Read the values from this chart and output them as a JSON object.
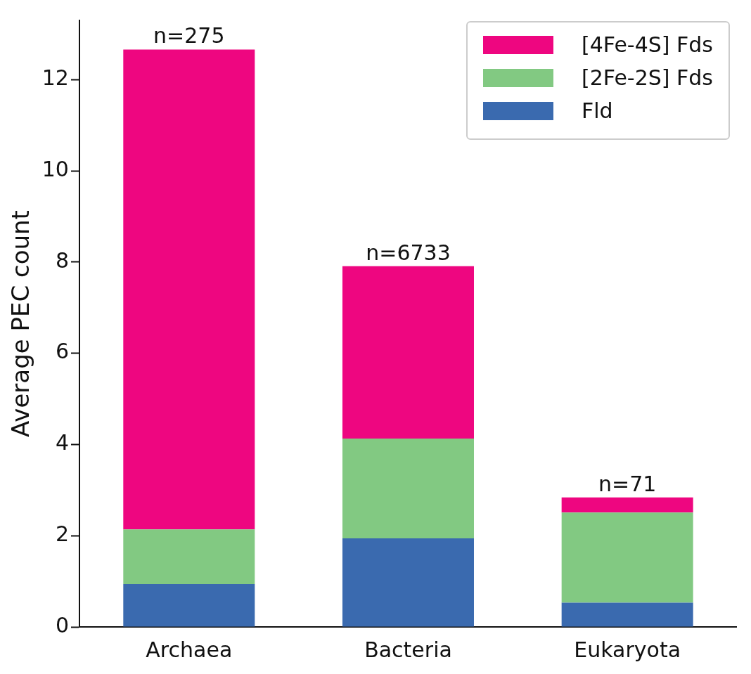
{
  "chart_data": {
    "type": "bar",
    "ylabel": "Average PEC count",
    "categories": [
      "Archaea",
      "Bacteria",
      "Eukaryota"
    ],
    "stacked": true,
    "series": [
      {
        "name": "Fld",
        "color": "#3a6aaf",
        "values": [
          0.94,
          1.94,
          0.53
        ]
      },
      {
        "name": "[2Fe-2S] Fds",
        "color": "#82c982",
        "values": [
          1.2,
          2.19,
          1.98
        ]
      },
      {
        "name": "[4Fe-4S] Fds",
        "color": "#ee0680",
        "values": [
          10.52,
          3.78,
          0.33
        ]
      }
    ],
    "ylim": [
      0,
      13.3
    ],
    "yticks": [
      0,
      2,
      4,
      6,
      8,
      10,
      12
    ],
    "grid": false,
    "legend": "top right",
    "annotations": [
      {
        "text": "n=275",
        "x": "Archaea",
        "y": 12.66
      },
      {
        "text": "n=6733",
        "x": "Bacteria",
        "y": 7.91
      },
      {
        "text": "n=71",
        "x": "Eukaryota",
        "y": 2.84
      }
    ]
  }
}
